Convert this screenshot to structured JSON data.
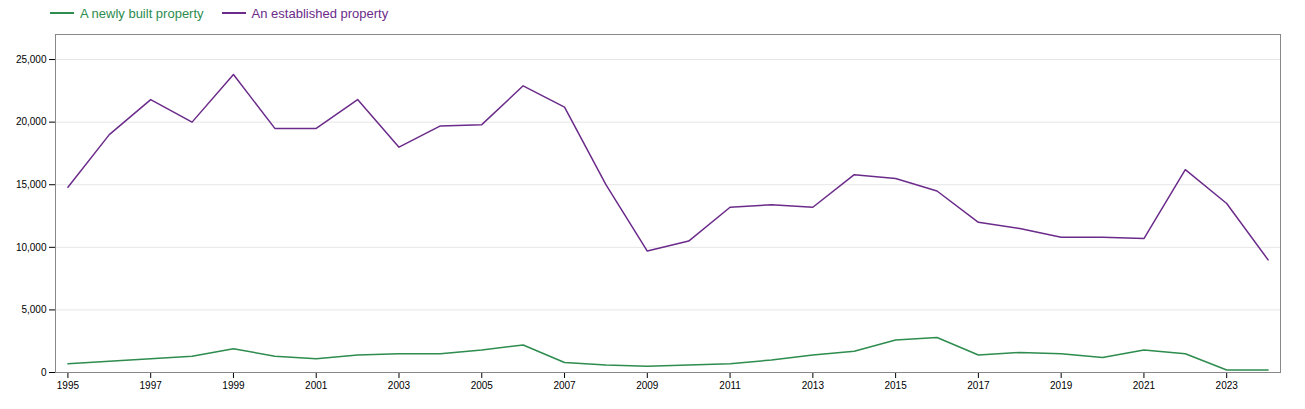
{
  "chart_data": {
    "type": "line",
    "x": [
      1995,
      1996,
      1997,
      1998,
      1999,
      2000,
      2001,
      2002,
      2003,
      2004,
      2005,
      2006,
      2007,
      2008,
      2009,
      2010,
      2011,
      2012,
      2013,
      2014,
      2015,
      2016,
      2017,
      2018,
      2019,
      2020,
      2021,
      2022,
      2023,
      2024
    ],
    "series": [
      {
        "name": "A newly built property",
        "color": "#2d8c4e",
        "values": [
          700,
          900,
          1100,
          1300,
          1900,
          1300,
          1100,
          1400,
          1500,
          1500,
          1800,
          2200,
          800,
          600,
          500,
          600,
          700,
          1000,
          1400,
          1700,
          2600,
          2800,
          1400,
          1600,
          1500,
          1200,
          1800,
          1500,
          200,
          200
        ]
      },
      {
        "name": "An established property",
        "color": "#6b2b8a",
        "values": [
          14800,
          19000,
          21800,
          20000,
          23800,
          19500,
          19500,
          21800,
          18000,
          19700,
          19800,
          22900,
          21200,
          15000,
          9700,
          10500,
          13200,
          13400,
          13200,
          15800,
          15500,
          14500,
          12000,
          11500,
          10800,
          10800,
          10700,
          16200,
          13500,
          9000
        ]
      }
    ],
    "xlim": [
      1994.7,
      2024.3
    ],
    "xticks": [
      1995,
      1997,
      1999,
      2001,
      2003,
      2005,
      2007,
      2009,
      2011,
      2013,
      2015,
      2017,
      2019,
      2021,
      2023
    ],
    "ylim": [
      0,
      27000
    ],
    "yticks": [
      0,
      {
        "value": 5000,
        "label": "5,000"
      },
      {
        "value": 10000,
        "label": "10,000"
      },
      {
        "value": 15000,
        "label": "15,000"
      },
      {
        "value": 20000,
        "label": "20,000"
      },
      {
        "value": 25000,
        "label": "25,000"
      }
    ],
    "grid": "y",
    "legend": "upper left"
  }
}
